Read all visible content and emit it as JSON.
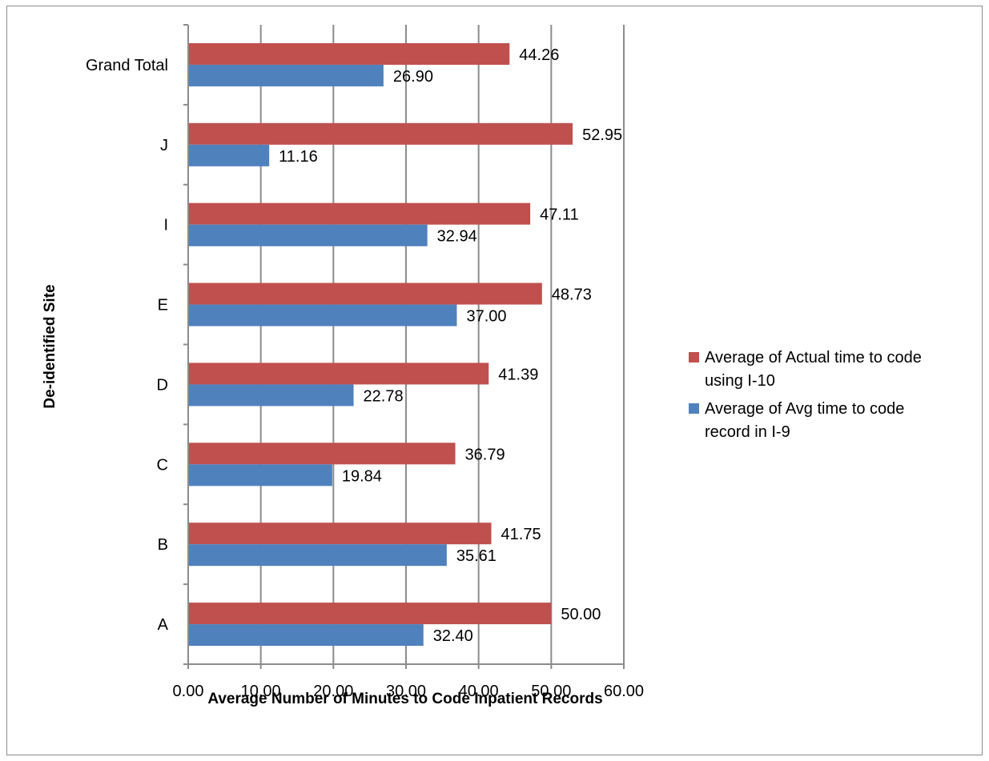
{
  "chart_data": {
    "type": "bar",
    "orientation": "horizontal",
    "categories": [
      "A",
      "B",
      "C",
      "D",
      "E",
      "I",
      "J",
      "Grand Total"
    ],
    "series": [
      {
        "name": "Average of Actual time to code using I-10",
        "legend_lines": [
          "Average of Actual time to code",
          "using I-10"
        ],
        "color": "#c0504d",
        "values": [
          50.0,
          41.75,
          36.79,
          41.39,
          48.73,
          47.11,
          52.95,
          44.26
        ],
        "labels": [
          "50.00",
          "41.75",
          "36.79",
          "41.39",
          "48.73",
          "47.11",
          "52.95",
          "44.26"
        ]
      },
      {
        "name": "Average of Avg time to code record in I-9",
        "legend_lines": [
          "Average of Avg time to code",
          "record in I-9"
        ],
        "color": "#4f81bd",
        "values": [
          32.4,
          35.61,
          19.84,
          22.78,
          37.0,
          32.94,
          11.16,
          26.9
        ],
        "labels": [
          "32.40",
          "35.61",
          "19.84",
          "22.78",
          "37.00",
          "32.94",
          "11.16",
          "26.90"
        ]
      }
    ],
    "xlim": [
      0,
      60
    ],
    "xticks": [
      "0.00",
      "10.00",
      "20.00",
      "30.00",
      "40.00",
      "50.00",
      "60.00"
    ],
    "xlabel": "Average Number of Minutes to Code Inpatient Records",
    "ylabel": "De-identified Site",
    "grid": true,
    "legend_position": "right"
  }
}
